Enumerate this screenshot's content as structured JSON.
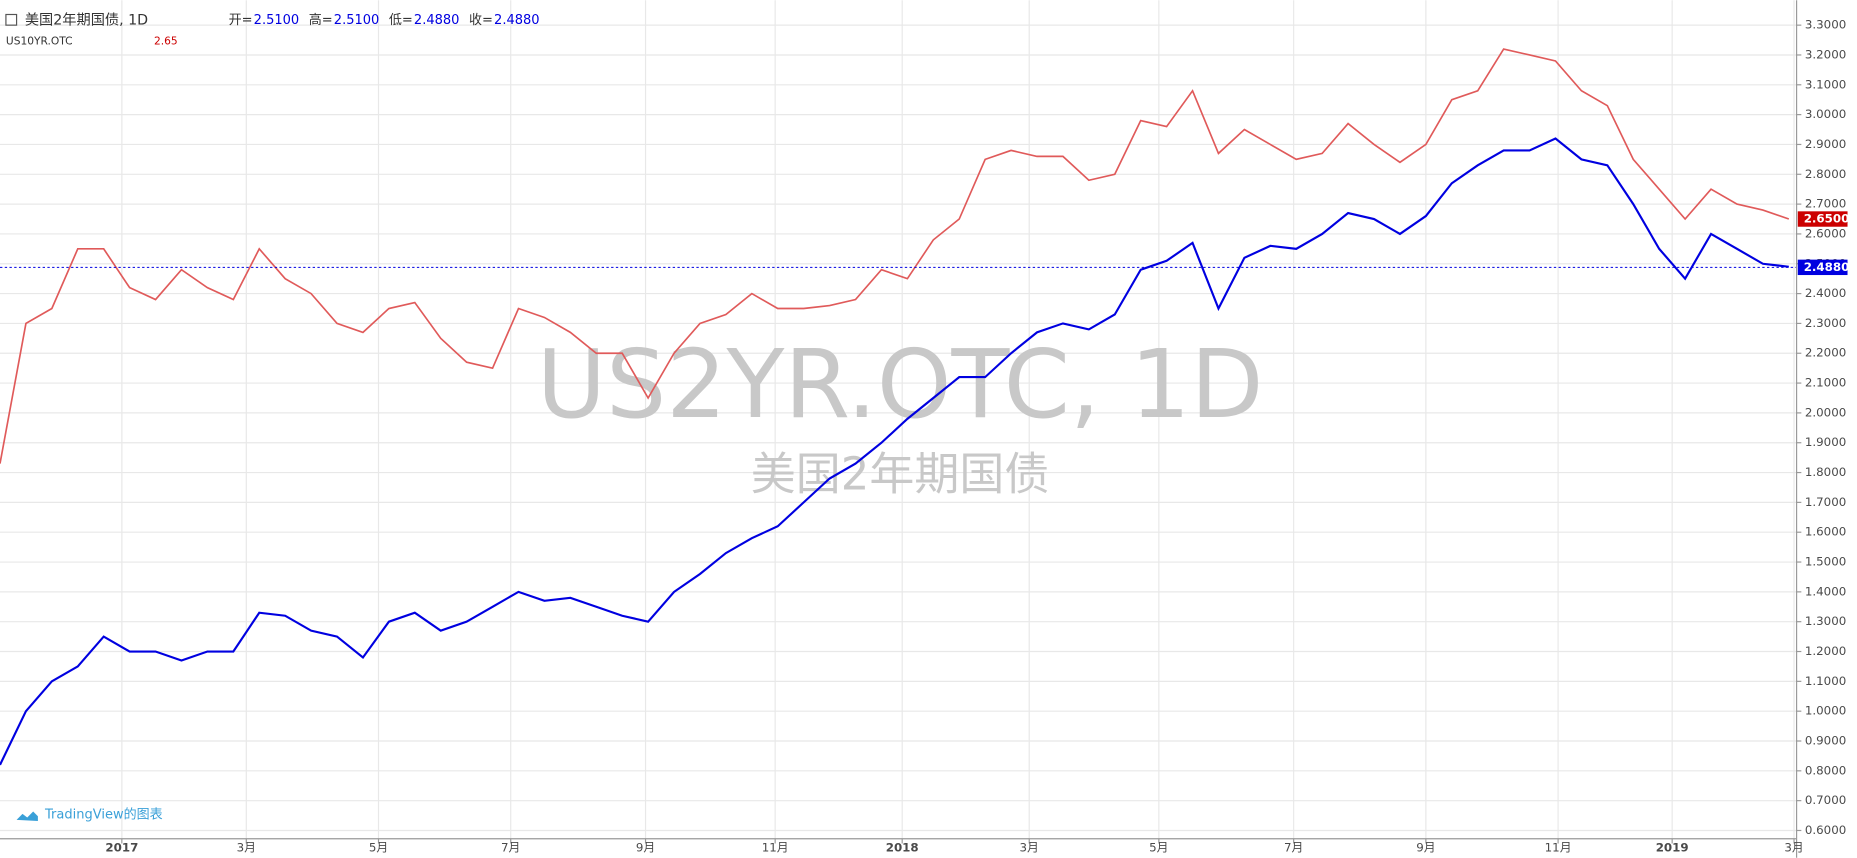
{
  "chart_data": {
    "type": "line",
    "title": "美国2年期国债, 1D",
    "ohlc": [
      {
        "label": "开=",
        "value": "2.5100"
      },
      {
        "label": "高=",
        "value": "2.5100"
      },
      {
        "label": "低=",
        "value": "2.4880"
      },
      {
        "label": "收=",
        "value": "2.4880"
      }
    ],
    "compare_name": "US10YR.OTC",
    "compare_value": "2.65",
    "watermark": "US2YR.OTC, 1D",
    "watermark_subtitle": "美国2年期国债",
    "credit": "TradingView的图表",
    "xlim": [
      0,
      69.3
    ],
    "xticks": [
      {
        "value": 4.7,
        "label": "2017"
      },
      {
        "value": 9.5,
        "label": "3月"
      },
      {
        "value": 14.6,
        "label": "5月"
      },
      {
        "value": 19.7,
        "label": "7月"
      },
      {
        "value": 24.9,
        "label": "9月"
      },
      {
        "value": 29.9,
        "label": "11月"
      },
      {
        "value": 34.8,
        "label": "2018"
      },
      {
        "value": 39.7,
        "label": "3月"
      },
      {
        "value": 44.7,
        "label": "5月"
      },
      {
        "value": 49.9,
        "label": "7月"
      },
      {
        "value": 55.0,
        "label": "9月"
      },
      {
        "value": 60.1,
        "label": "11月"
      },
      {
        "value": 64.5,
        "label": "2019"
      },
      {
        "value": 69.2,
        "label": "3月"
      }
    ],
    "ylim": [
      0.55,
      3.35
    ],
    "yticks": [
      {
        "value": 0.6,
        "label": "0.6000"
      },
      {
        "value": 0.7,
        "label": "0.7000"
      },
      {
        "value": 0.8,
        "label": "0.8000"
      },
      {
        "value": 0.9,
        "label": "0.9000"
      },
      {
        "value": 1.0,
        "label": "1.0000"
      },
      {
        "value": 1.1,
        "label": "1.1000"
      },
      {
        "value": 1.2,
        "label": "1.2000"
      },
      {
        "value": 1.3,
        "label": "1.3000"
      },
      {
        "value": 1.4,
        "label": "1.4000"
      },
      {
        "value": 1.5,
        "label": "1.5000"
      },
      {
        "value": 1.6,
        "label": "1.6000"
      },
      {
        "value": 1.7,
        "label": "1.7000"
      },
      {
        "value": 1.8,
        "label": "1.8000"
      },
      {
        "value": 1.9,
        "label": "1.9000"
      },
      {
        "value": 2.0,
        "label": "2.0000"
      },
      {
        "value": 2.1,
        "label": "2.1000"
      },
      {
        "value": 2.2,
        "label": "2.2000"
      },
      {
        "value": 2.3,
        "label": "2.3000"
      },
      {
        "value": 2.4,
        "label": "2.4000"
      },
      {
        "value": 2.5,
        "label": "2.5000"
      },
      {
        "value": 2.6,
        "label": "2.6000"
      },
      {
        "value": 2.7,
        "label": "2.7000"
      },
      {
        "value": 2.8,
        "label": "2.8000"
      },
      {
        "value": 2.9,
        "label": "2.9000"
      },
      {
        "value": 3.0,
        "label": "3.0000"
      },
      {
        "value": 3.1,
        "label": "3.1000"
      },
      {
        "value": 3.2,
        "label": "3.2000"
      },
      {
        "value": 3.3,
        "label": "3.3000"
      }
    ],
    "grid": true,
    "series": [
      {
        "name": "US10YR.OTC",
        "color": "#e05a5a",
        "last": {
          "value": 2.65,
          "label": "2.6500"
        },
        "values": [
          1.83,
          2.3,
          2.35,
          2.55,
          2.55,
          2.42,
          2.38,
          2.48,
          2.42,
          2.38,
          2.55,
          2.45,
          2.4,
          2.3,
          2.27,
          2.35,
          2.37,
          2.25,
          2.17,
          2.15,
          2.35,
          2.32,
          2.27,
          2.2,
          2.2,
          2.05,
          2.2,
          2.3,
          2.33,
          2.4,
          2.35,
          2.35,
          2.36,
          2.38,
          2.48,
          2.45,
          2.58,
          2.65,
          2.85,
          2.88,
          2.86,
          2.86,
          2.78,
          2.8,
          2.98,
          2.96,
          3.08,
          2.87,
          2.95,
          2.9,
          2.85,
          2.87,
          2.97,
          2.9,
          2.84,
          2.9,
          3.05,
          3.08,
          3.22,
          3.2,
          3.18,
          3.08,
          3.03,
          2.85,
          2.75,
          2.65,
          2.75,
          2.7,
          2.68,
          2.65
        ]
      },
      {
        "name": "US2YR.OTC",
        "color": "#0000e0",
        "last": {
          "value": 2.488,
          "label": "2.4880"
        },
        "values": [
          0.82,
          1.0,
          1.1,
          1.15,
          1.25,
          1.2,
          1.2,
          1.17,
          1.2,
          1.2,
          1.33,
          1.32,
          1.27,
          1.25,
          1.18,
          1.3,
          1.33,
          1.27,
          1.3,
          1.35,
          1.4,
          1.37,
          1.38,
          1.35,
          1.32,
          1.3,
          1.4,
          1.46,
          1.53,
          1.58,
          1.62,
          1.7,
          1.78,
          1.83,
          1.9,
          1.98,
          2.05,
          2.12,
          2.12,
          2.2,
          2.27,
          2.3,
          2.28,
          2.33,
          2.48,
          2.51,
          2.57,
          2.35,
          2.52,
          2.56,
          2.55,
          2.6,
          2.67,
          2.65,
          2.6,
          2.66,
          2.77,
          2.83,
          2.88,
          2.88,
          2.92,
          2.85,
          2.83,
          2.7,
          2.55,
          2.45,
          2.6,
          2.55,
          2.5,
          2.49
        ]
      }
    ]
  }
}
